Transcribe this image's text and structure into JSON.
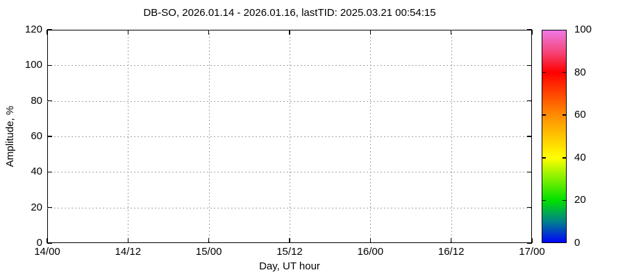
{
  "figure": {
    "title": "DB-SO, 2026.01.14 - 2026.01.16, lastTID: 2025.03.21 00:54:15"
  },
  "chart_data": {
    "type": "heatmap",
    "title": "DB-SO, 2026.01.14 - 2026.01.16, lastTID: 2025.03.21 00:54:15",
    "xlabel": "Day, UT hour",
    "ylabel": "Amplitude, %",
    "x_tick_labels": [
      "14/00",
      "14/12",
      "15/00",
      "15/12",
      "16/00",
      "16/12",
      "17/00"
    ],
    "y_ticks": [
      0,
      20,
      40,
      60,
      80,
      100,
      120
    ],
    "ylim": [
      0,
      120
    ],
    "grid": true,
    "points": [],
    "colorbar": {
      "range": [
        0,
        100
      ],
      "tick_labels": [
        0,
        20,
        40,
        60,
        80,
        100
      ],
      "inner_tick_values": [
        20,
        40,
        60,
        80
      ],
      "gradient_stops": [
        {
          "value": 0,
          "color": "#0000ff"
        },
        {
          "value": 10,
          "color": "#00808c"
        },
        {
          "value": 20,
          "color": "#00e000"
        },
        {
          "value": 40,
          "color": "#ffff00"
        },
        {
          "value": 60,
          "color": "#ff8c00"
        },
        {
          "value": 80,
          "color": "#ff0000"
        },
        {
          "value": 90,
          "color": "#f4487e"
        },
        {
          "value": 100,
          "color": "#ee7ae8"
        }
      ]
    }
  },
  "colors": {
    "background": "#ffffff",
    "frame": "#000000",
    "grid": "#a2a2a2",
    "text": "#000000"
  }
}
